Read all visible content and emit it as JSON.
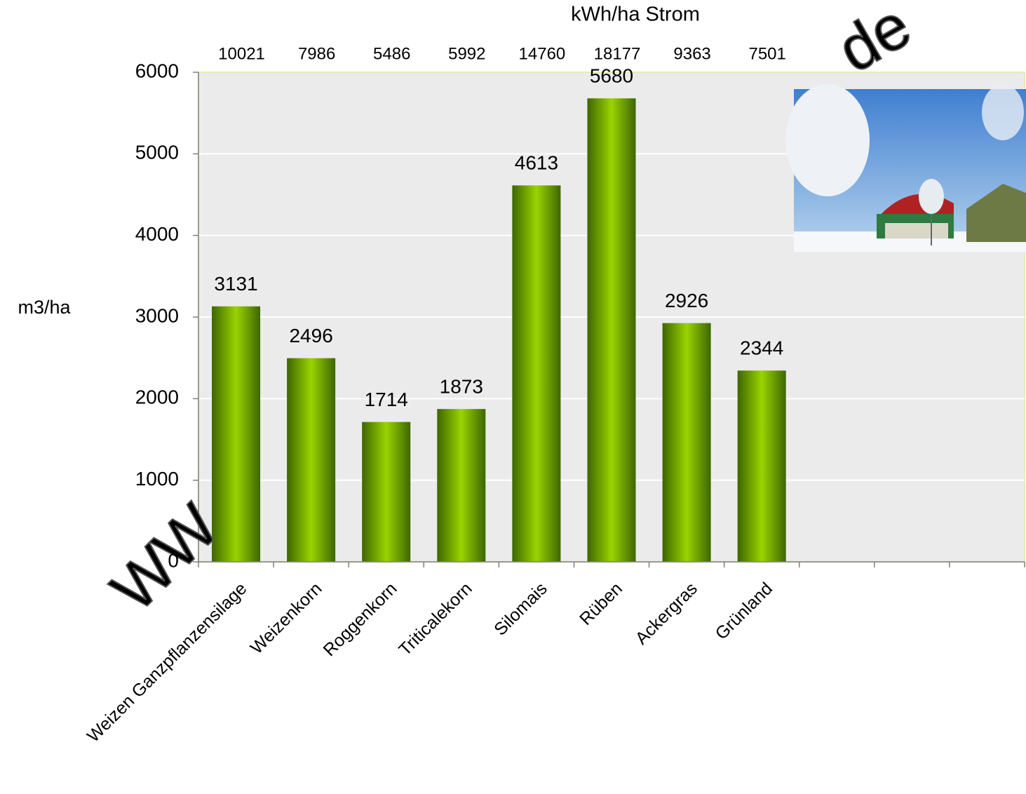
{
  "chart_data": {
    "type": "bar",
    "top_axis_label": "kWh/ha Strom",
    "top_values": [
      10021,
      7986,
      5486,
      5992,
      14760,
      18177,
      9363,
      7501,
      null,
      null,
      null
    ],
    "y_label": "m3/ha",
    "categories": [
      "Weizen Ganzpflanzensilage",
      "Weizenkorn",
      "Roggenkorn",
      "Triticalekorn",
      "Silomais",
      "Rüben",
      "Ackergras",
      "Grünland",
      null,
      null,
      null
    ],
    "values": [
      3131,
      2496,
      1714,
      1873,
      4613,
      5680,
      2926,
      2344,
      null,
      null,
      null
    ],
    "color": "#99d400",
    "ylim": [
      0,
      6000
    ],
    "yticks": [
      0,
      1000,
      2000,
      3000,
      4000,
      5000,
      6000
    ],
    "grid": true,
    "watermarks": [
      "WW",
      "de"
    ]
  }
}
